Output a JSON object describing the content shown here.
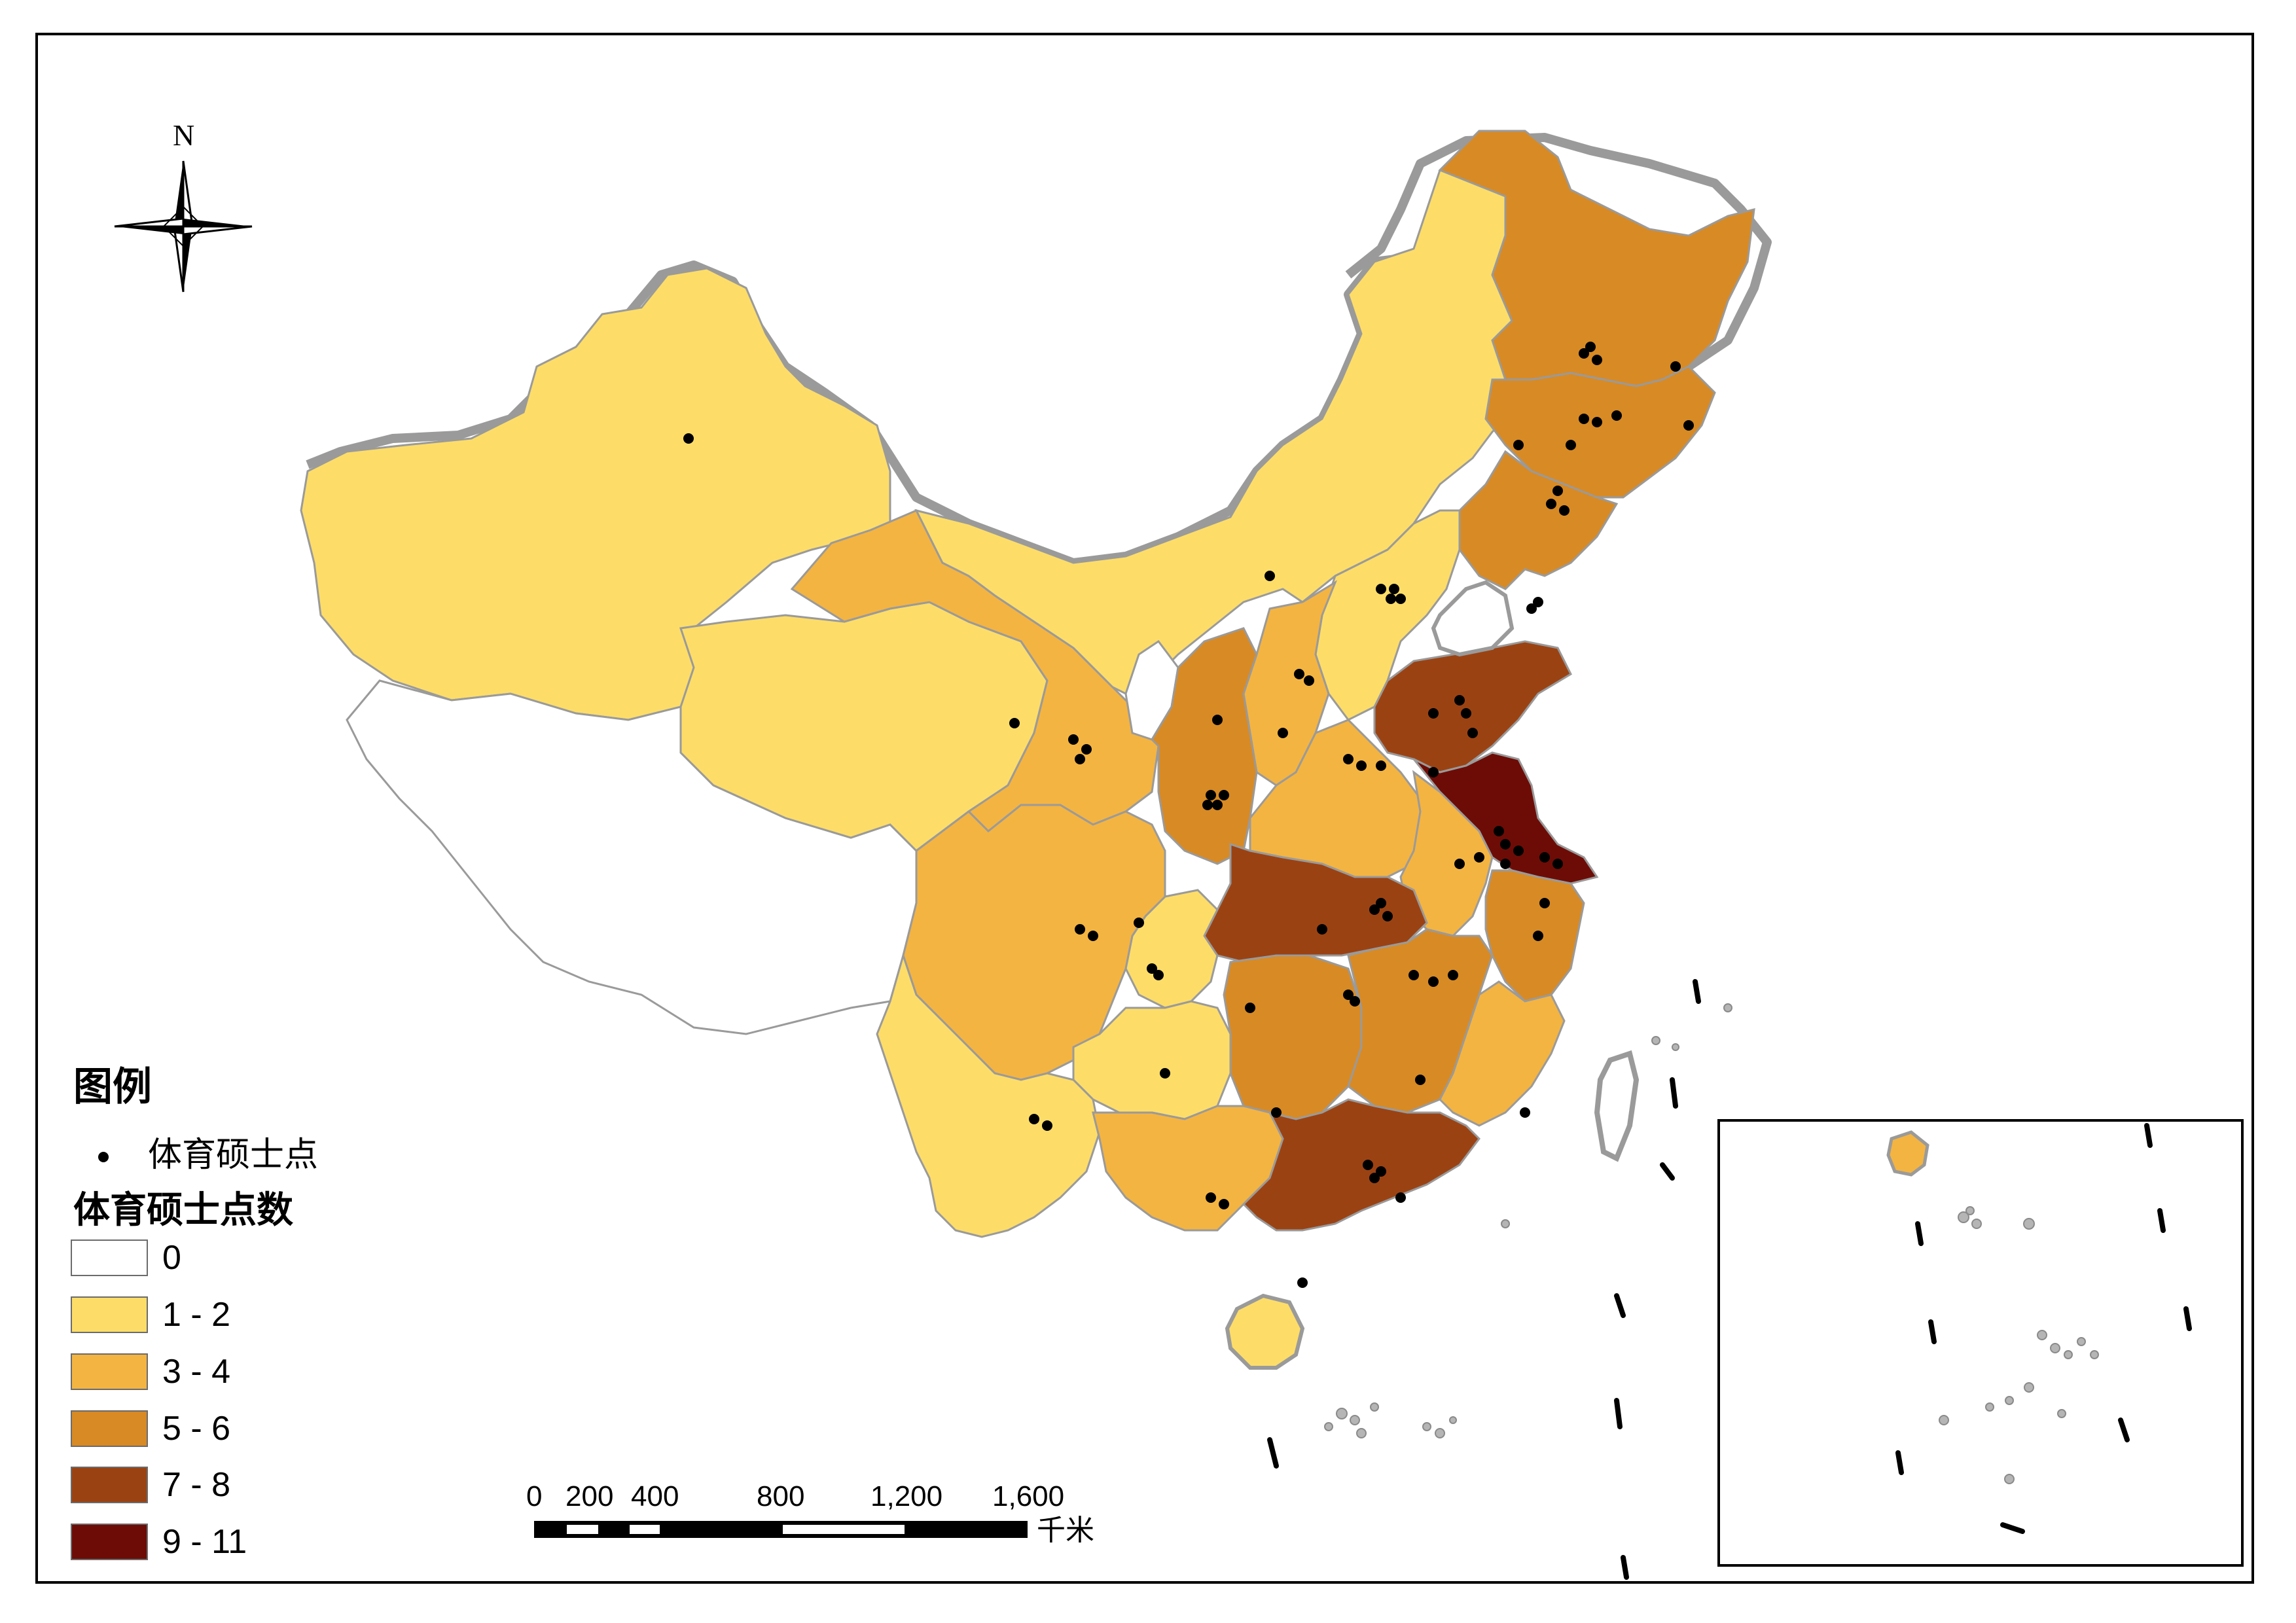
{
  "map": {
    "north_label": "N",
    "legend": {
      "title": "图例",
      "point_label": "体育硕士点",
      "classes_title": "体育硕士点数",
      "classes": [
        {
          "label": "0",
          "color": "#ffffff"
        },
        {
          "label": "1 - 2",
          "color": "#fddd68"
        },
        {
          "label": "3 - 4",
          "color": "#f4b441"
        },
        {
          "label": "5 - 6",
          "color": "#d88a24"
        },
        {
          "label": "7 - 8",
          "color": "#9b4213"
        },
        {
          "label": "9 - 11",
          "color": "#6d0c06"
        }
      ]
    },
    "scale_bar": {
      "labels": [
        "0",
        "200",
        "400",
        "800",
        "1,200",
        "1,600"
      ],
      "unit": "千米"
    }
  }
}
